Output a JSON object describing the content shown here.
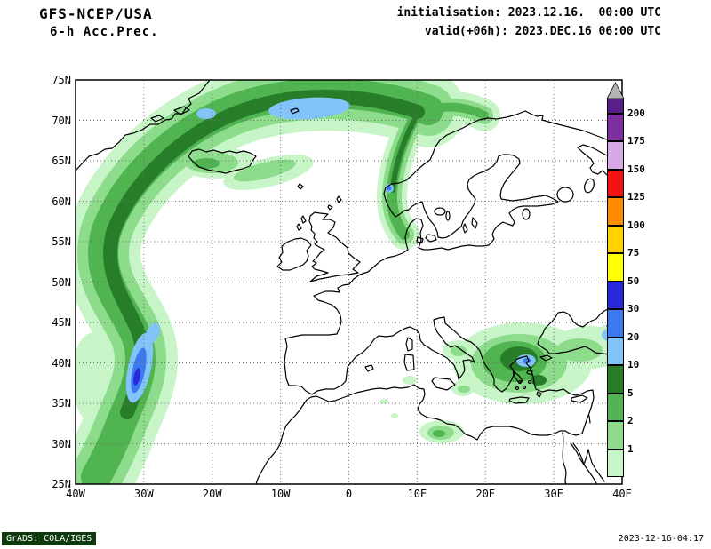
{
  "header": {
    "model": "GFS-NCEP/USA",
    "product": "6-h Acc.Prec.",
    "init": "initialisation: 2023.12.16.  00:00 UTC",
    "valid": "valid(+06h): 2023.DEC.16 06:00 UTC"
  },
  "map": {
    "axes": {
      "lat_labels": [
        "75N",
        "70N",
        "65N",
        "60N",
        "55N",
        "50N",
        "45N",
        "40N",
        "35N",
        "30N",
        "25N"
      ],
      "lon_labels": [
        "40W",
        "30W",
        "20W",
        "10W",
        "0",
        "10E",
        "20E",
        "30E",
        "40E"
      ]
    },
    "legend": {
      "levels": [
        "1",
        "2",
        "5",
        "10",
        "20",
        "30",
        "50",
        "75",
        "100",
        "125",
        "150",
        "175",
        "200"
      ],
      "colors": [
        "#c8f5c8",
        "#8cdc8c",
        "#50b450",
        "#287d28",
        "#82c3fa",
        "#3c78f0",
        "#2828dc",
        "#ffff00",
        "#ffd200",
        "#ff8c00",
        "#f01414",
        "#d7a7e6",
        "#7d2ea0",
        "#5a1e8c"
      ],
      "arrow_color": "#b4b4b4"
    }
  },
  "footer": {
    "credit": "GrADS: COLA/IGES",
    "timestamp": "2023-12-16-04:17"
  }
}
